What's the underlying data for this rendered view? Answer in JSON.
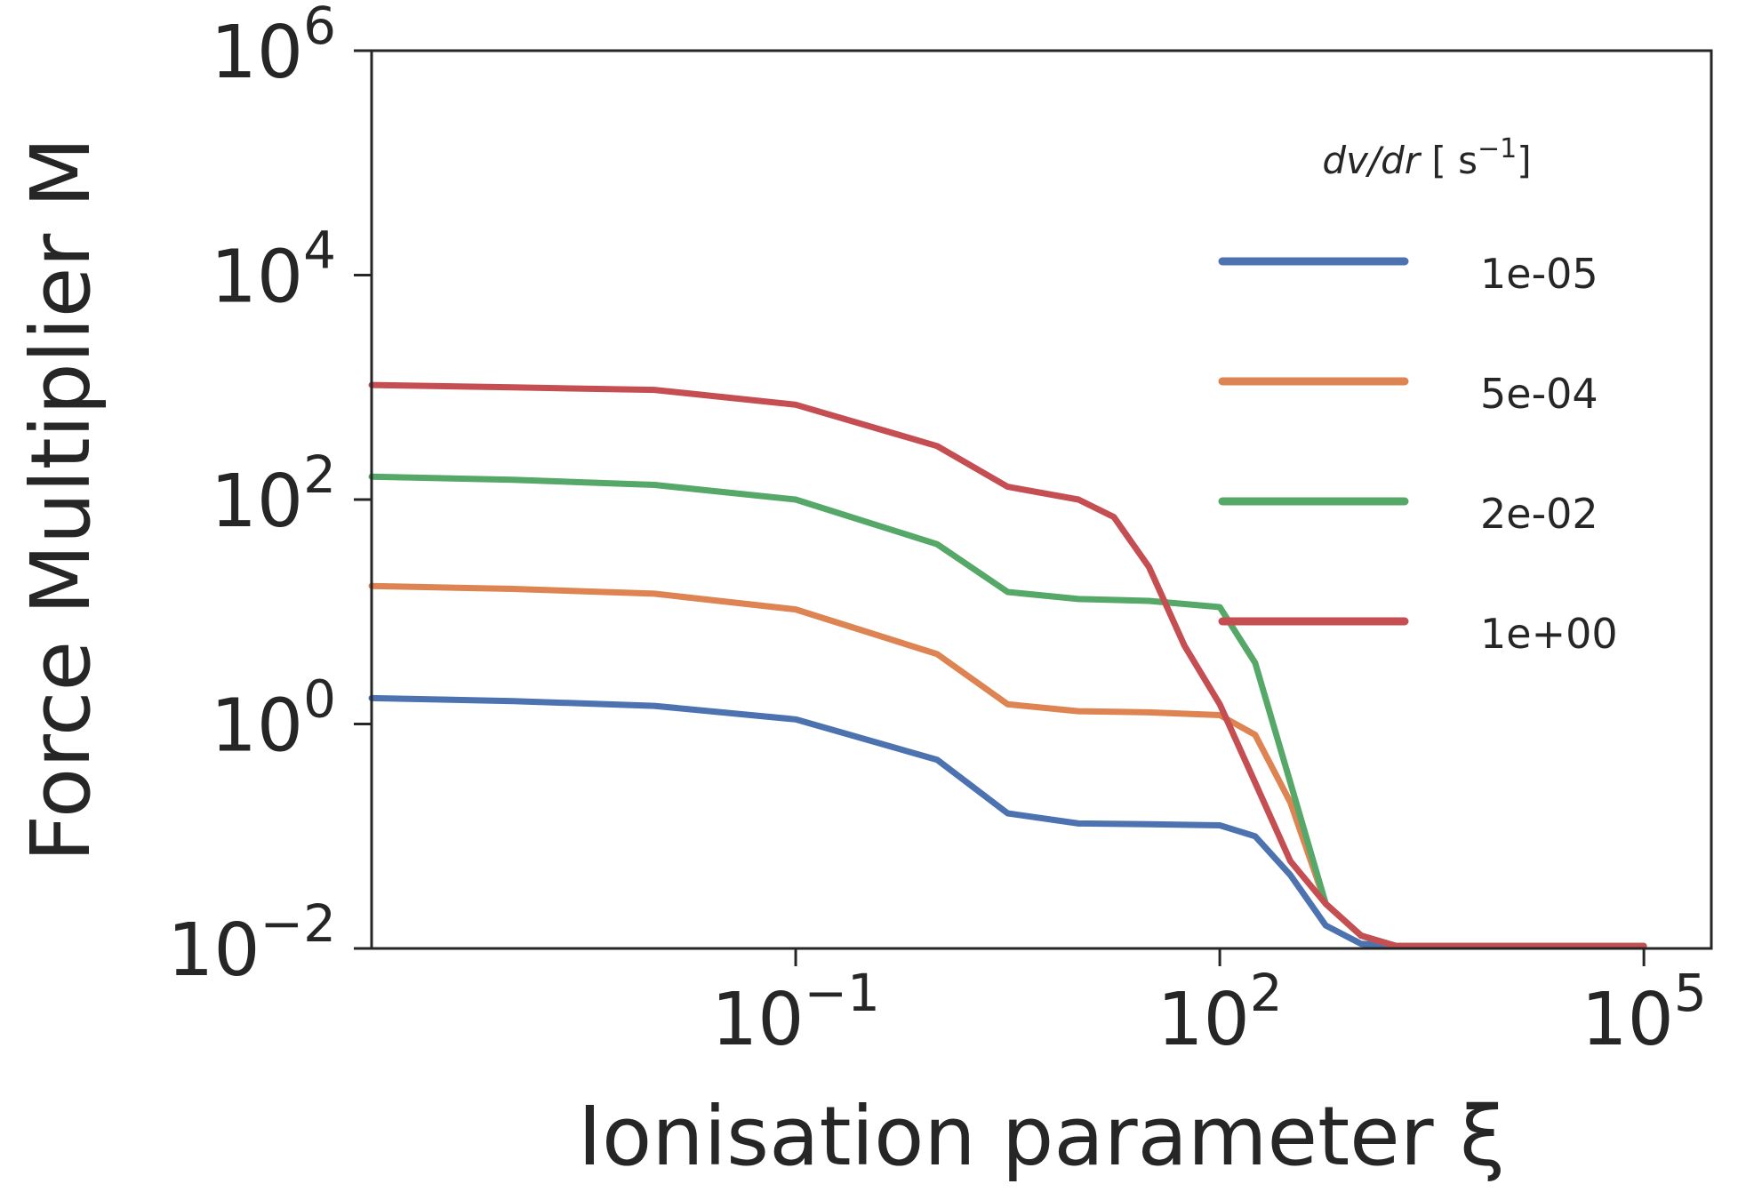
{
  "chart_data": {
    "type": "line",
    "xlabel": "Ionisation parameter ξ",
    "ylabel": "Force Multiplier M",
    "x_scale": "log",
    "y_scale": "log",
    "xlim": [
      0.0001,
      300000
    ],
    "ylim": [
      0.01,
      1000000
    ],
    "x_ticks": [
      {
        "value": 0.1,
        "base": "10",
        "exp": "−1"
      },
      {
        "value": 100,
        "base": "10",
        "exp": "2"
      },
      {
        "value": 100000,
        "base": "10",
        "exp": "5"
      }
    ],
    "y_ticks": [
      {
        "value": 0.01,
        "base": "10",
        "exp": "−2"
      },
      {
        "value": 1,
        "base": "10",
        "exp": "0"
      },
      {
        "value": 100,
        "base": "10",
        "exp": "2"
      },
      {
        "value": 10000,
        "base": "10",
        "exp": "4"
      },
      {
        "value": 1000000,
        "base": "10",
        "exp": "6"
      }
    ],
    "legend": {
      "title": "dv/dr [ s−1]",
      "title_var": "dv/dr",
      "title_unit": " [ s",
      "title_exp": "−1",
      "title_close": "]",
      "position": "upper-right"
    },
    "grid": false,
    "series": [
      {
        "name": "1e-05",
        "color": "#4c72b0",
        "x": [
          0.0001,
          0.001,
          0.01,
          0.1,
          1,
          3.16,
          10,
          31.6,
          100,
          178,
          316,
          562,
          1000,
          1780,
          3160,
          10000,
          100000
        ],
        "y": [
          1.7,
          1.6,
          1.45,
          1.1,
          0.48,
          0.16,
          0.13,
          0.128,
          0.125,
          0.1,
          0.045,
          0.016,
          0.011,
          0.0105,
          0.0105,
          0.0105,
          0.0105
        ]
      },
      {
        "name": "5e-04",
        "color": "#dd8452",
        "x": [
          0.0001,
          0.001,
          0.01,
          0.1,
          1,
          3.16,
          10,
          31.6,
          100,
          178,
          316,
          562,
          1000,
          1780,
          3160,
          10000,
          100000
        ],
        "y": [
          17,
          16,
          14.5,
          10.5,
          4.2,
          1.5,
          1.3,
          1.27,
          1.2,
          0.8,
          0.2,
          0.025,
          0.013,
          0.0105,
          0.0105,
          0.0105,
          0.0105
        ]
      },
      {
        "name": "2e-02",
        "color": "#55a868",
        "x": [
          0.0001,
          0.001,
          0.01,
          0.1,
          1,
          3.16,
          10,
          31.6,
          100,
          178,
          316,
          562,
          1000,
          1780,
          3160,
          10000,
          100000
        ],
        "y": [
          160,
          150,
          135,
          100,
          40,
          15,
          13,
          12.5,
          11,
          3.5,
          0.3,
          0.025,
          0.013,
          0.0105,
          0.0105,
          0.0105,
          0.0105
        ]
      },
      {
        "name": "1e+00",
        "color": "#c44e52",
        "x": [
          0.0001,
          0.001,
          0.01,
          0.1,
          1,
          3.16,
          10,
          17.8,
          31.6,
          56.2,
          100,
          178,
          316,
          562,
          1000,
          1780,
          3160,
          10000,
          100000
        ],
        "y": [
          1050,
          1000,
          950,
          700,
          300,
          130,
          100,
          70,
          25,
          5,
          1.5,
          0.3,
          0.06,
          0.025,
          0.013,
          0.0105,
          0.0105,
          0.0105,
          0.0105
        ]
      }
    ]
  }
}
